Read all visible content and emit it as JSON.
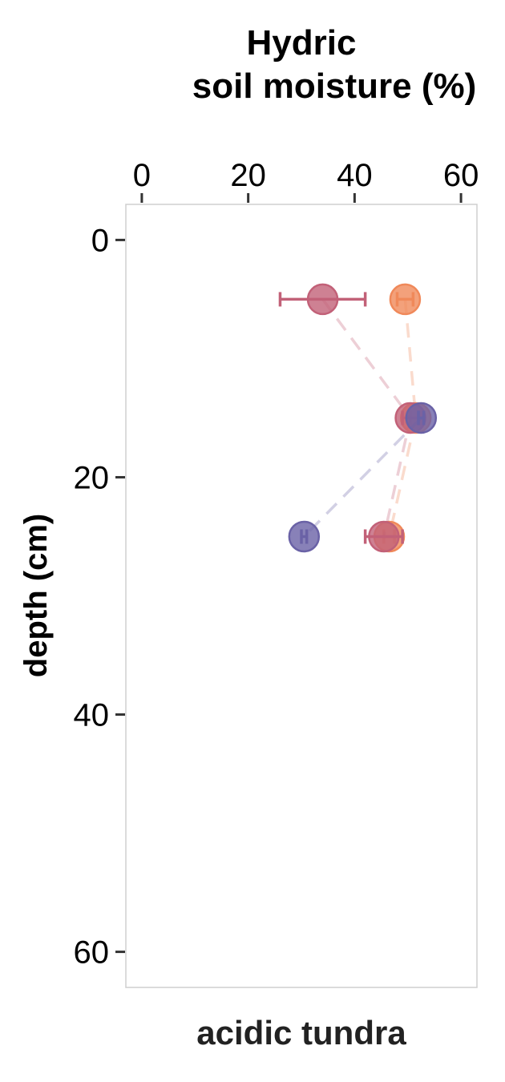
{
  "chart_data": {
    "type": "scatter",
    "title_line1": "Hydric",
    "title_line2": "soil moisture (%)",
    "xlabel": "soil moisture (%)",
    "ylabel": "depth (cm)",
    "panel_label": "acidic tundra",
    "x_axis_position": "top",
    "y_axis_reversed": true,
    "xlim": [
      -3,
      63
    ],
    "ylim": [
      -3,
      63
    ],
    "x_ticks": [
      0,
      20,
      40,
      60
    ],
    "y_ticks": [
      0,
      20,
      40,
      60
    ],
    "x_tick_labels": [
      "0",
      "20",
      "40",
      "60"
    ],
    "y_tick_labels": [
      "0",
      "20",
      "40",
      "60"
    ],
    "grid": false,
    "series": [
      {
        "color": "#f0895a",
        "points": [
          {
            "depth": 5,
            "x": 49.5,
            "err": 1.5
          },
          {
            "depth": 15,
            "x": 51.5,
            "err": 1.0
          },
          {
            "depth": 25,
            "x": 46.5,
            "err": 1.0
          }
        ]
      },
      {
        "color": "#c26178",
        "points": [
          {
            "depth": 5,
            "x": 34.0,
            "err": 8.0
          },
          {
            "depth": 15,
            "x": 50.5,
            "err": 1.5
          },
          {
            "depth": 25,
            "x": 45.5,
            "err": 3.5
          }
        ]
      },
      {
        "color": "#6a62a6",
        "points": [
          {
            "depth": 15,
            "x": 52.5,
            "err": 0.5
          },
          {
            "depth": 25,
            "x": 30.5,
            "err": 0.5
          }
        ]
      }
    ]
  }
}
